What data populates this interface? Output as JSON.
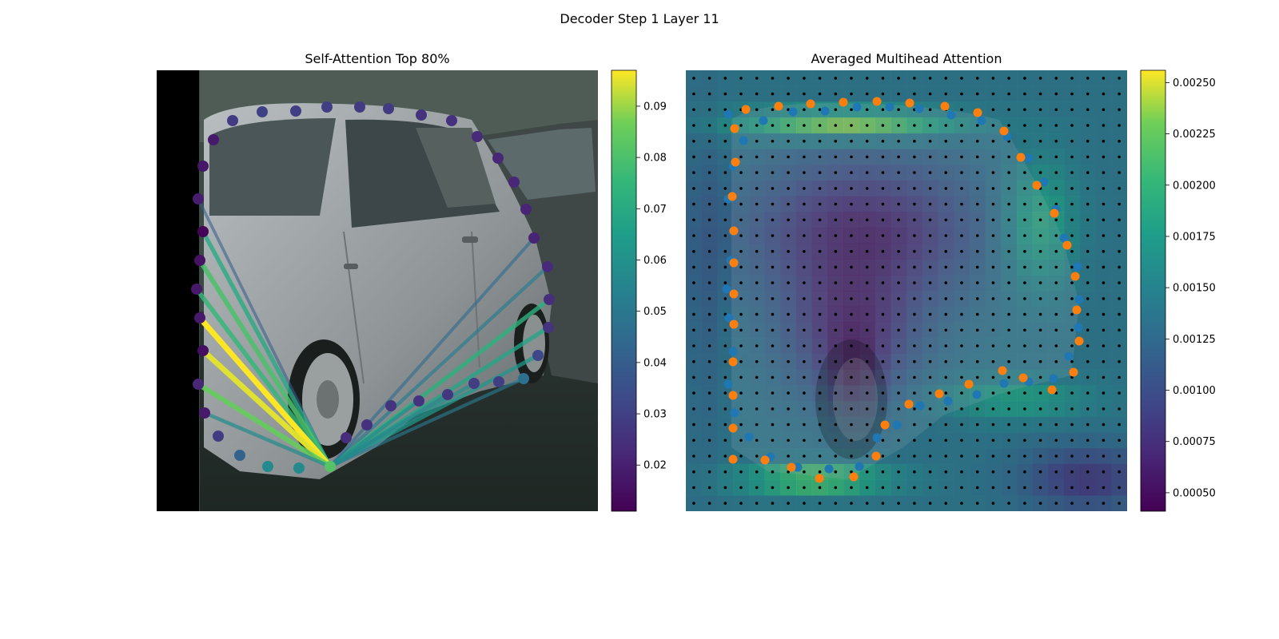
{
  "suptitle": "Decoder Step 1 Layer 11",
  "chart_data": [
    {
      "type": "scatter",
      "title": "Self-Attention Top 80%",
      "description_of_background": "photo of a silver hatchback car on a street",
      "colormap": "viridis",
      "colorbar": {
        "min": 0.011,
        "max": 0.097,
        "ticks": [
          0.02,
          0.03,
          0.04,
          0.05,
          0.06,
          0.07,
          0.08,
          0.09
        ]
      },
      "query_point": {
        "x": 413,
        "y": 584,
        "value": 0.082
      },
      "points": [
        {
          "x": 291,
          "y": 151,
          "v": 0.028
        },
        {
          "x": 328,
          "y": 140,
          "v": 0.03
        },
        {
          "x": 370,
          "y": 139,
          "v": 0.029
        },
        {
          "x": 409,
          "y": 134,
          "v": 0.029
        },
        {
          "x": 450,
          "y": 134,
          "v": 0.028
        },
        {
          "x": 486,
          "y": 136,
          "v": 0.028
        },
        {
          "x": 527,
          "y": 144,
          "v": 0.026
        },
        {
          "x": 565,
          "y": 151,
          "v": 0.025
        },
        {
          "x": 597,
          "y": 171,
          "v": 0.023
        },
        {
          "x": 623,
          "y": 198,
          "v": 0.022
        },
        {
          "x": 643,
          "y": 228,
          "v": 0.022
        },
        {
          "x": 658,
          "y": 262,
          "v": 0.021
        },
        {
          "x": 668,
          "y": 298,
          "v": 0.021
        },
        {
          "x": 685,
          "y": 334,
          "v": 0.023
        },
        {
          "x": 687,
          "y": 375,
          "v": 0.024
        },
        {
          "x": 686,
          "y": 410,
          "v": 0.026
        },
        {
          "x": 673,
          "y": 445,
          "v": 0.032
        },
        {
          "x": 655,
          "y": 474,
          "v": 0.047
        },
        {
          "x": 624,
          "y": 478,
          "v": 0.029
        },
        {
          "x": 593,
          "y": 480,
          "v": 0.029
        },
        {
          "x": 560,
          "y": 494,
          "v": 0.027
        },
        {
          "x": 524,
          "y": 502,
          "v": 0.026
        },
        {
          "x": 489,
          "y": 508,
          "v": 0.026
        },
        {
          "x": 459,
          "y": 532,
          "v": 0.025
        },
        {
          "x": 433,
          "y": 548,
          "v": 0.024
        },
        {
          "x": 374,
          "y": 586,
          "v": 0.057
        },
        {
          "x": 335,
          "y": 584,
          "v": 0.057
        },
        {
          "x": 300,
          "y": 570,
          "v": 0.042
        },
        {
          "x": 273,
          "y": 546,
          "v": 0.028
        },
        {
          "x": 256,
          "y": 517,
          "v": 0.018
        },
        {
          "x": 248,
          "y": 481,
          "v": 0.022
        },
        {
          "x": 254,
          "y": 439,
          "v": 0.015
        },
        {
          "x": 250,
          "y": 398,
          "v": 0.018
        },
        {
          "x": 246,
          "y": 362,
          "v": 0.018
        },
        {
          "x": 250,
          "y": 326,
          "v": 0.016
        },
        {
          "x": 254,
          "y": 290,
          "v": 0.012
        },
        {
          "x": 248,
          "y": 249,
          "v": 0.019
        },
        {
          "x": 254,
          "y": 208,
          "v": 0.017
        },
        {
          "x": 267,
          "y": 175,
          "v": 0.018
        }
      ],
      "lines": [
        {
          "x": 248,
          "y": 249,
          "v": 0.04
        },
        {
          "x": 254,
          "y": 290,
          "v": 0.07
        },
        {
          "x": 250,
          "y": 326,
          "v": 0.08
        },
        {
          "x": 246,
          "y": 362,
          "v": 0.075
        },
        {
          "x": 250,
          "y": 398,
          "v": 0.097
        },
        {
          "x": 254,
          "y": 439,
          "v": 0.095
        },
        {
          "x": 248,
          "y": 481,
          "v": 0.085
        },
        {
          "x": 256,
          "y": 517,
          "v": 0.058
        },
        {
          "x": 685,
          "y": 334,
          "v": 0.052
        },
        {
          "x": 687,
          "y": 375,
          "v": 0.072
        },
        {
          "x": 686,
          "y": 410,
          "v": 0.068
        },
        {
          "x": 673,
          "y": 445,
          "v": 0.062
        },
        {
          "x": 655,
          "y": 474,
          "v": 0.05
        },
        {
          "x": 668,
          "y": 298,
          "v": 0.045
        },
        {
          "x": 593,
          "y": 480,
          "v": 0.06
        },
        {
          "x": 560,
          "y": 494,
          "v": 0.056
        },
        {
          "x": 524,
          "y": 502,
          "v": 0.058
        }
      ]
    },
    {
      "type": "heatmap",
      "title": "Averaged Multihead Attention",
      "colormap": "viridis",
      "colorbar": {
        "min": 0.00041,
        "max": 0.00256,
        "ticks": [
          0.0005,
          0.00075,
          0.001,
          0.00125,
          0.0015,
          0.00175,
          0.002,
          0.00225,
          0.0025
        ],
        "tick_labels": [
          "0.00050",
          "0.00075",
          "0.00100",
          "0.00125",
          "0.00150",
          "0.00175",
          "0.00200",
          "0.00225",
          "0.00250"
        ]
      },
      "series": [
        {
          "name": "blue",
          "color": "#1f77b4"
        },
        {
          "name": "orange",
          "color": "#ff7f0e"
        }
      ]
    }
  ]
}
